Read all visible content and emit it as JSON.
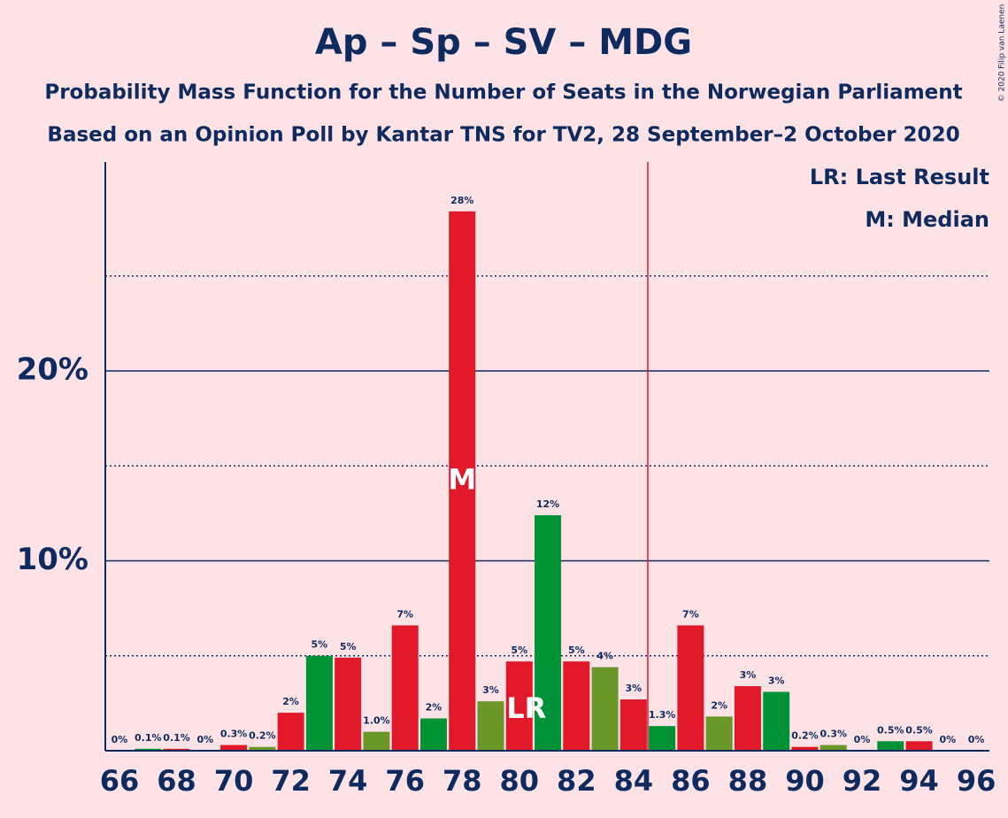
{
  "chart_data": {
    "type": "bar",
    "title": "Ap – Sp – SV – MDG",
    "subtitle": "Probability Mass Function for the Number of Seats in the Norwegian Parliament",
    "subtitle2": "Based on an Opinion Poll by Kantar TNS for TV2, 28 September–2 October 2020",
    "copyright": "© 2020 Filip van Laenen",
    "legend_lr": "LR: Last Result",
    "legend_m": "M: Median",
    "median": 78,
    "median_label": "M",
    "last_result": 80,
    "last_result_label": "LR",
    "majority_line": 84.5,
    "x": [
      66,
      67,
      68,
      69,
      70,
      71,
      72,
      73,
      74,
      75,
      76,
      77,
      78,
      79,
      80,
      81,
      82,
      83,
      84,
      85,
      86,
      87,
      88,
      89,
      90,
      91,
      92,
      93,
      94,
      95,
      96
    ],
    "values": [
      0,
      0.1,
      0.1,
      0,
      0.3,
      0.2,
      2.0,
      5.0,
      4.9,
      1.0,
      6.6,
      1.7,
      28.4,
      2.6,
      4.7,
      12.4,
      4.7,
      4.4,
      2.7,
      1.3,
      6.6,
      1.8,
      3.4,
      3.1,
      0.2,
      0.3,
      0,
      0.5,
      0.5,
      0,
      0
    ],
    "value_labels": [
      "0%",
      "0.1%",
      "0.1%",
      "0%",
      "0.3%",
      "0.2%",
      "2%",
      "5%",
      "5%",
      "1.0%",
      "7%",
      "2%",
      "28%",
      "3%",
      "5%",
      "12%",
      "5%",
      "4%",
      "3%",
      "1.3%",
      "7%",
      "2%",
      "3%",
      "3%",
      "0.2%",
      "0.3%",
      "0%",
      "0.5%",
      "0.5%",
      "0%",
      "0%"
    ],
    "colors": [
      "#e0182a",
      "#009236",
      "#e0182a",
      "#6b9628",
      "#e0182a",
      "#6b9628",
      "#e0182a",
      "#009236",
      "#e0182a",
      "#6b9628",
      "#e0182a",
      "#009236",
      "#e0182a",
      "#6b9628",
      "#e0182a",
      "#009236",
      "#e0182a",
      "#6b9628",
      "#e0182a",
      "#009236",
      "#e0182a",
      "#6b9628",
      "#e0182a",
      "#009236",
      "#e0182a",
      "#6b9628",
      "#e0182a",
      "#009236",
      "#e0182a",
      "#6b9628",
      "#e0182a"
    ],
    "xlim": [
      65.5,
      96.5
    ],
    "xticks": [
      66,
      68,
      70,
      72,
      74,
      76,
      78,
      80,
      82,
      84,
      86,
      88,
      90,
      92,
      94,
      96
    ],
    "ylim": [
      0,
      31
    ],
    "yticks": [
      {
        "value": 10,
        "label": "10%"
      },
      {
        "value": 20,
        "label": "20%"
      }
    ],
    "minor_grid": [
      5,
      15,
      25
    ],
    "grid": true
  }
}
